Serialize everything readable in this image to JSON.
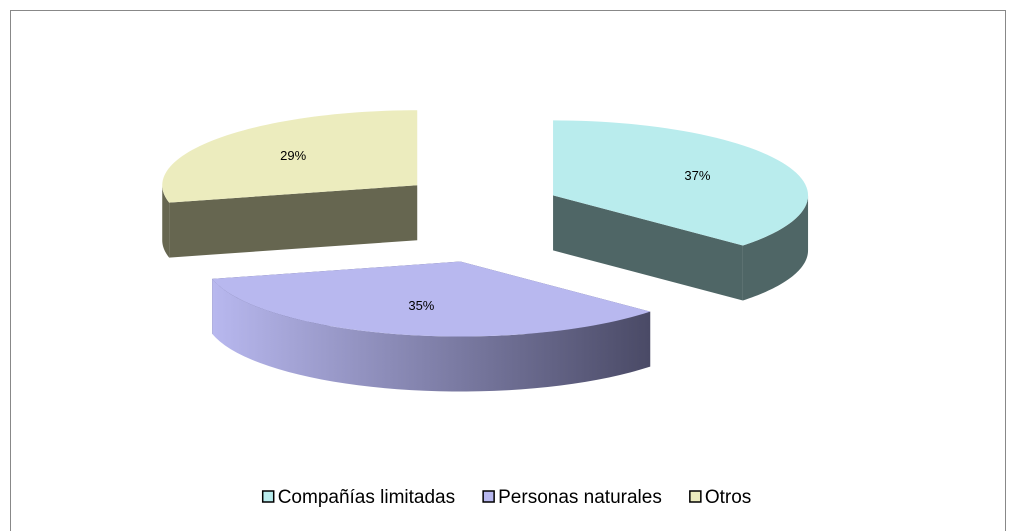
{
  "chart_data": {
    "type": "pie3d",
    "categories": [
      "Compañías limitadas",
      "Personas naturales",
      "Otros"
    ],
    "values": [
      37,
      35,
      29
    ],
    "value_labels": [
      "37%",
      "35%",
      "29%"
    ],
    "colors": [
      "#b9eced",
      "#b8b8ef",
      "#ececbe"
    ],
    "side_colors": [
      "#4f6666",
      "#4a4a66",
      "#666650"
    ],
    "legend": "bottom"
  }
}
